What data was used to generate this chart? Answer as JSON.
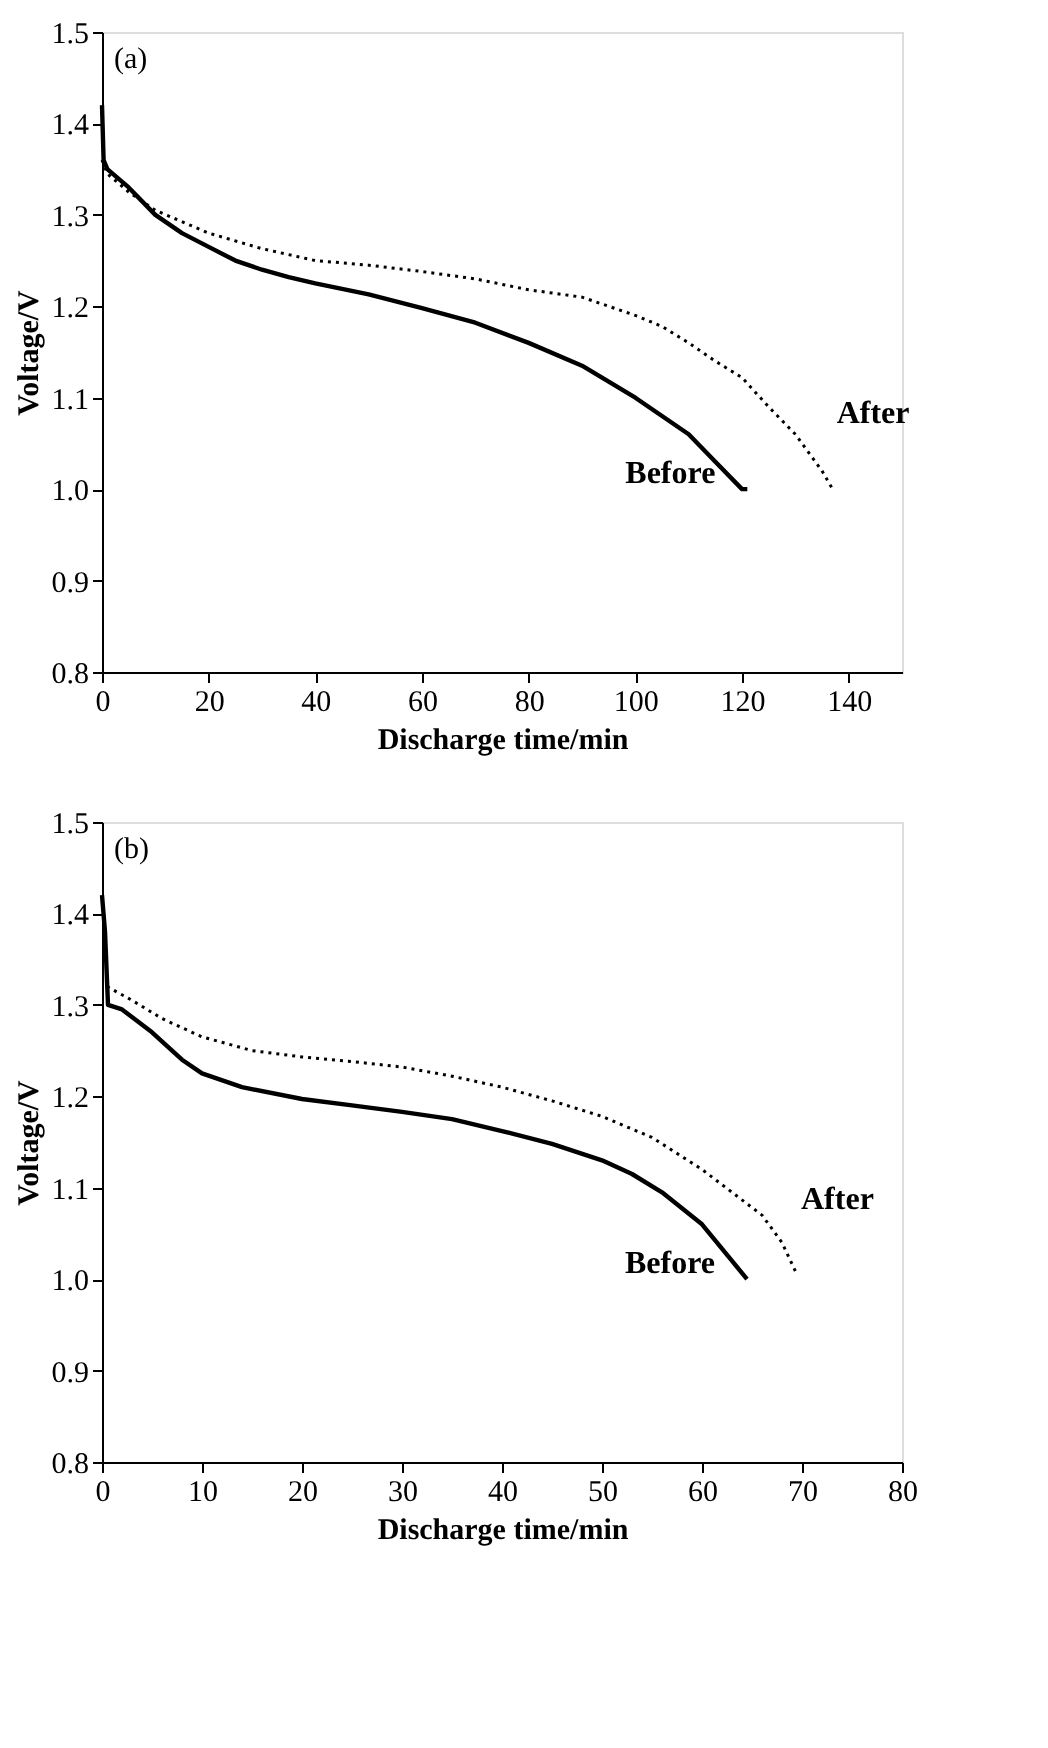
{
  "chart_data": [
    {
      "type": "line",
      "title": "(a)",
      "xlabel": "Discharge time/min",
      "ylabel": "Voltage/V",
      "xlim": [
        0,
        150
      ],
      "xticks": [
        0,
        20,
        40,
        60,
        80,
        100,
        120,
        140
      ],
      "ylim": [
        0.8,
        1.5
      ],
      "yticks": [
        0.8,
        0.9,
        {
          "value": 1,
          "label": "1.0"
        },
        1.1,
        1.2,
        1.3,
        1.4,
        1.5
      ],
      "grid": false,
      "legend": false,
      "marker": "none",
      "series": [
        {
          "name": "Before",
          "color": "#000000",
          "line_style": "solid",
          "x": [
            0,
            0.3,
            1,
            5,
            10,
            15,
            20,
            25,
            30,
            35,
            40,
            50,
            60,
            70,
            80,
            90,
            100,
            105,
            110,
            115,
            120,
            121
          ],
          "values": [
            1.42,
            1.36,
            1.35,
            1.33,
            1.3,
            1.28,
            1.265,
            1.25,
            1.24,
            1.232,
            1.225,
            1.213,
            1.198,
            1.182,
            1.16,
            1.135,
            1.1,
            1.08,
            1.06,
            1.03,
            1.0,
            1.0
          ]
        },
        {
          "name": "After",
          "color": "#000000",
          "line_style": "dotted",
          "x": [
            0,
            1,
            5,
            10,
            20,
            30,
            40,
            50,
            60,
            70,
            80,
            90,
            100,
            105,
            110,
            115,
            120,
            125,
            130,
            135,
            137
          ],
          "values": [
            1.36,
            1.345,
            1.325,
            1.305,
            1.28,
            1.263,
            1.25,
            1.245,
            1.238,
            1.23,
            1.218,
            1.21,
            1.19,
            1.178,
            1.16,
            1.14,
            1.122,
            1.09,
            1.06,
            1.02,
            1.0
          ]
        }
      ]
    },
    {
      "type": "line",
      "title": "(b)",
      "xlabel": "Discharge time/min",
      "ylabel": "Voltage/V",
      "xlim": [
        0,
        80
      ],
      "xticks": [
        0,
        10,
        20,
        30,
        40,
        50,
        60,
        70,
        80
      ],
      "ylim": [
        0.8,
        1.5
      ],
      "yticks": [
        0.8,
        0.9,
        {
          "value": 1,
          "label": "1.0"
        },
        1.1,
        1.2,
        1.3,
        1.4,
        1.5
      ],
      "grid": false,
      "legend": false,
      "marker": "none",
      "series": [
        {
          "name": "Before",
          "color": "#000000",
          "line_style": "solid",
          "x": [
            0,
            0.3,
            0.6,
            2,
            5,
            8,
            10,
            14,
            20,
            25,
            30,
            35,
            40,
            45,
            50,
            53,
            56,
            60,
            63,
            64.5
          ],
          "values": [
            1.42,
            1.38,
            1.3,
            1.295,
            1.27,
            1.24,
            1.225,
            1.21,
            1.197,
            1.19,
            1.183,
            1.175,
            1.162,
            1.148,
            1.13,
            1.115,
            1.095,
            1.06,
            1.02,
            1.0
          ]
        },
        {
          "name": "After",
          "color": "#000000",
          "line_style": "dotted",
          "x": [
            0.5,
            3,
            6,
            10,
            15,
            20,
            25,
            30,
            35,
            40,
            45,
            50,
            55,
            60,
            63,
            66,
            68,
            69.5
          ],
          "values": [
            1.32,
            1.305,
            1.285,
            1.265,
            1.25,
            1.243,
            1.238,
            1.232,
            1.222,
            1.21,
            1.195,
            1.178,
            1.155,
            1.12,
            1.095,
            1.07,
            1.04,
            1.005
          ]
        }
      ]
    }
  ]
}
